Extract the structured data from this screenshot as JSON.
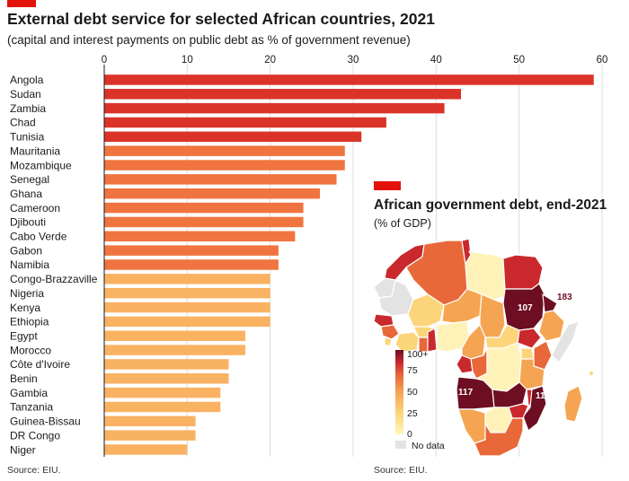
{
  "header": {
    "title": "External debt service for selected African countries, 2021",
    "subtitle": "(capital and interest payments on public debt as % of government revenue)"
  },
  "chart_data": [
    {
      "type": "bar",
      "orientation": "horizontal",
      "title": "External debt service for selected African countries, 2021",
      "subtitle": "(capital and interest payments on public debt as % of government revenue)",
      "xlim": [
        0,
        60
      ],
      "ticks": [
        0,
        10,
        20,
        30,
        40,
        50,
        60
      ],
      "tick_labels": [
        "0",
        "10",
        "20",
        "30",
        "40",
        "50",
        "60"
      ],
      "categories": [
        "Angola",
        "Sudan",
        "Zambia",
        "Chad",
        "Tunisia",
        "Mauritania",
        "Mozambique",
        "Senegal",
        "Ghana",
        "Cameroon",
        "Djibouti",
        "Cabo Verde",
        "Gabon",
        "Namibia",
        "Congo-Brazzaville",
        "Nigeria",
        "Kenya",
        "Ethiopia",
        "Egypt",
        "Morocco",
        "Côte d'Ivoire",
        "Benin",
        "Gambia",
        "Tanzania",
        "Guinea-Bissau",
        "DR Congo",
        "Niger"
      ],
      "values": [
        59,
        43,
        41,
        34,
        31,
        29,
        29,
        28,
        26,
        24,
        24,
        23,
        21,
        21,
        20,
        20,
        20,
        20,
        17,
        17,
        15,
        15,
        14,
        14,
        11,
        11,
        10
      ],
      "colors": {
        "high": "#db3328",
        "mid": "#f0743f",
        "low": "#f9b262"
      },
      "grid": true,
      "source": "Source: EIU."
    },
    {
      "type": "map",
      "title": "African government debt, end-2021",
      "subtitle": "(% of GDP)",
      "annotations": [
        {
          "label": "107",
          "value": 107
        },
        {
          "label": "183",
          "value": 183
        },
        {
          "label": "117",
          "value": 117
        },
        {
          "label": "11",
          "value": 11
        }
      ],
      "legend": {
        "ticks": [
          "100+",
          "75",
          "50",
          "25",
          "0"
        ],
        "no_data_label": "No data",
        "colors": [
          "#fff7bc",
          "#fcd57a",
          "#f5a552",
          "#e8683a",
          "#c9282c",
          "#6d0e22"
        ],
        "no_data_color": "#e3e3e3"
      },
      "source": "Source: EIU."
    }
  ]
}
